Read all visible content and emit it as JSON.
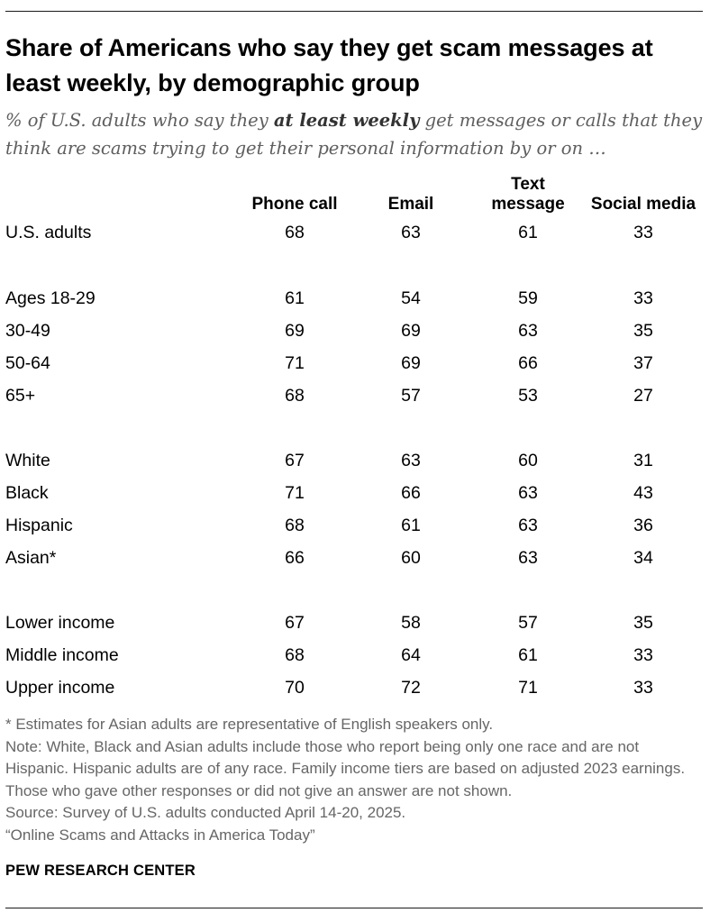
{
  "chart_data": {
    "type": "table",
    "title": "Share of Americans who say they get scam messages at least weekly, by demographic group",
    "subtitle_parts": [
      "% of U.S. adults who say they ",
      "at least weekly",
      " get messages or calls that they think are scams trying to get their personal information by or on …"
    ],
    "columns": [
      {
        "line1": "",
        "line2": "Phone call"
      },
      {
        "line1": "",
        "line2": "Email"
      },
      {
        "line1": "Text",
        "line2": "message"
      },
      {
        "line1": "",
        "line2": "Social media"
      }
    ],
    "groups": [
      {
        "rows": [
          {
            "label": "U.S. adults",
            "values": [
              "68",
              "63",
              "61",
              "33"
            ]
          }
        ]
      },
      {
        "rows": [
          {
            "label": "Ages 18-29",
            "values": [
              "61",
              "54",
              "59",
              "33"
            ]
          },
          {
            "label": "30-49",
            "values": [
              "69",
              "69",
              "63",
              "35"
            ]
          },
          {
            "label": "50-64",
            "values": [
              "71",
              "69",
              "66",
              "37"
            ]
          },
          {
            "label": "65+",
            "values": [
              "68",
              "57",
              "53",
              "27"
            ]
          }
        ]
      },
      {
        "rows": [
          {
            "label": "White",
            "values": [
              "67",
              "63",
              "60",
              "31"
            ]
          },
          {
            "label": "Black",
            "values": [
              "71",
              "66",
              "63",
              "43"
            ]
          },
          {
            "label": "Hispanic",
            "values": [
              "68",
              "61",
              "63",
              "36"
            ]
          },
          {
            "label": "Asian*",
            "values": [
              "66",
              "60",
              "63",
              "34"
            ]
          }
        ]
      },
      {
        "rows": [
          {
            "label": "Lower income",
            "values": [
              "67",
              "58",
              "57",
              "35"
            ]
          },
          {
            "label": "Middle income",
            "values": [
              "68",
              "64",
              "61",
              "33"
            ]
          },
          {
            "label": "Upper income",
            "values": [
              "70",
              "72",
              "71",
              "33"
            ]
          }
        ]
      }
    ]
  },
  "notes": [
    "* Estimates for Asian adults are representative of English speakers only.",
    "Note: White, Black and Asian adults include those who report being only one race and are not Hispanic. Hispanic adults are of any race. Family income tiers are based on adjusted 2023 earnings. Those who gave other responses or did not give an answer are not shown.",
    "Source: Survey of U.S. adults conducted April 14-20, 2025.",
    "“Online Scams and Attacks in America Today”"
  ],
  "source_org": "PEW RESEARCH CENTER"
}
